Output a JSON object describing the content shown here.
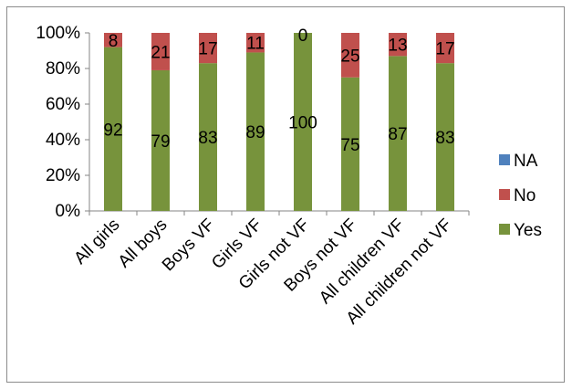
{
  "chart_data": {
    "type": "bar",
    "stacked": true,
    "percent": true,
    "categories": [
      "All girls",
      "All boys",
      "Boys VF",
      "Girls VF",
      "Girls not VF",
      "Boys not VF",
      "All children VF",
      "All children not VF"
    ],
    "series": [
      {
        "name": "Yes",
        "color": "#77933c",
        "values": [
          92,
          79,
          83,
          89,
          100,
          75,
          87,
          83
        ]
      },
      {
        "name": "No",
        "color": "#c0504d",
        "values": [
          8,
          21,
          17,
          11,
          0,
          25,
          13,
          17
        ]
      },
      {
        "name": "NA",
        "color": "#4f81bd",
        "values": [
          0,
          0,
          0,
          0,
          0,
          0,
          0,
          0
        ]
      }
    ],
    "data_labels": {
      "Yes": [
        "92",
        "79",
        "83",
        "89",
        "100",
        "75",
        "87",
        "83"
      ],
      "No": [
        "8",
        "21",
        "17",
        "11",
        "0",
        "25",
        "13",
        "17"
      ]
    },
    "y_ticks": [
      "0%",
      "20%",
      "40%",
      "60%",
      "80%",
      "100%"
    ],
    "ylim": [
      0,
      100
    ],
    "legend": [
      "NA",
      "No",
      "Yes"
    ],
    "legend_position": "right",
    "grid": false
  }
}
